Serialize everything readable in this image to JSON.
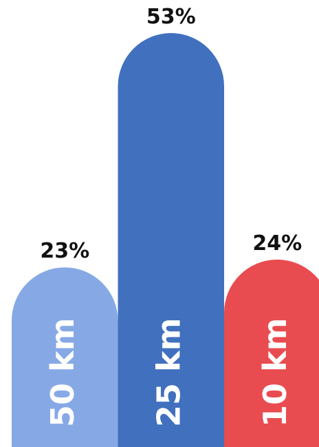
{
  "chart_data": {
    "type": "bar",
    "categories": [
      "50 km",
      "25 km",
      "10 km"
    ],
    "values": [
      23,
      53,
      24
    ],
    "value_labels": [
      "23%",
      "53%",
      "24%"
    ],
    "colors": [
      "#86a9e6",
      "#4170be",
      "#e94c50"
    ]
  }
}
